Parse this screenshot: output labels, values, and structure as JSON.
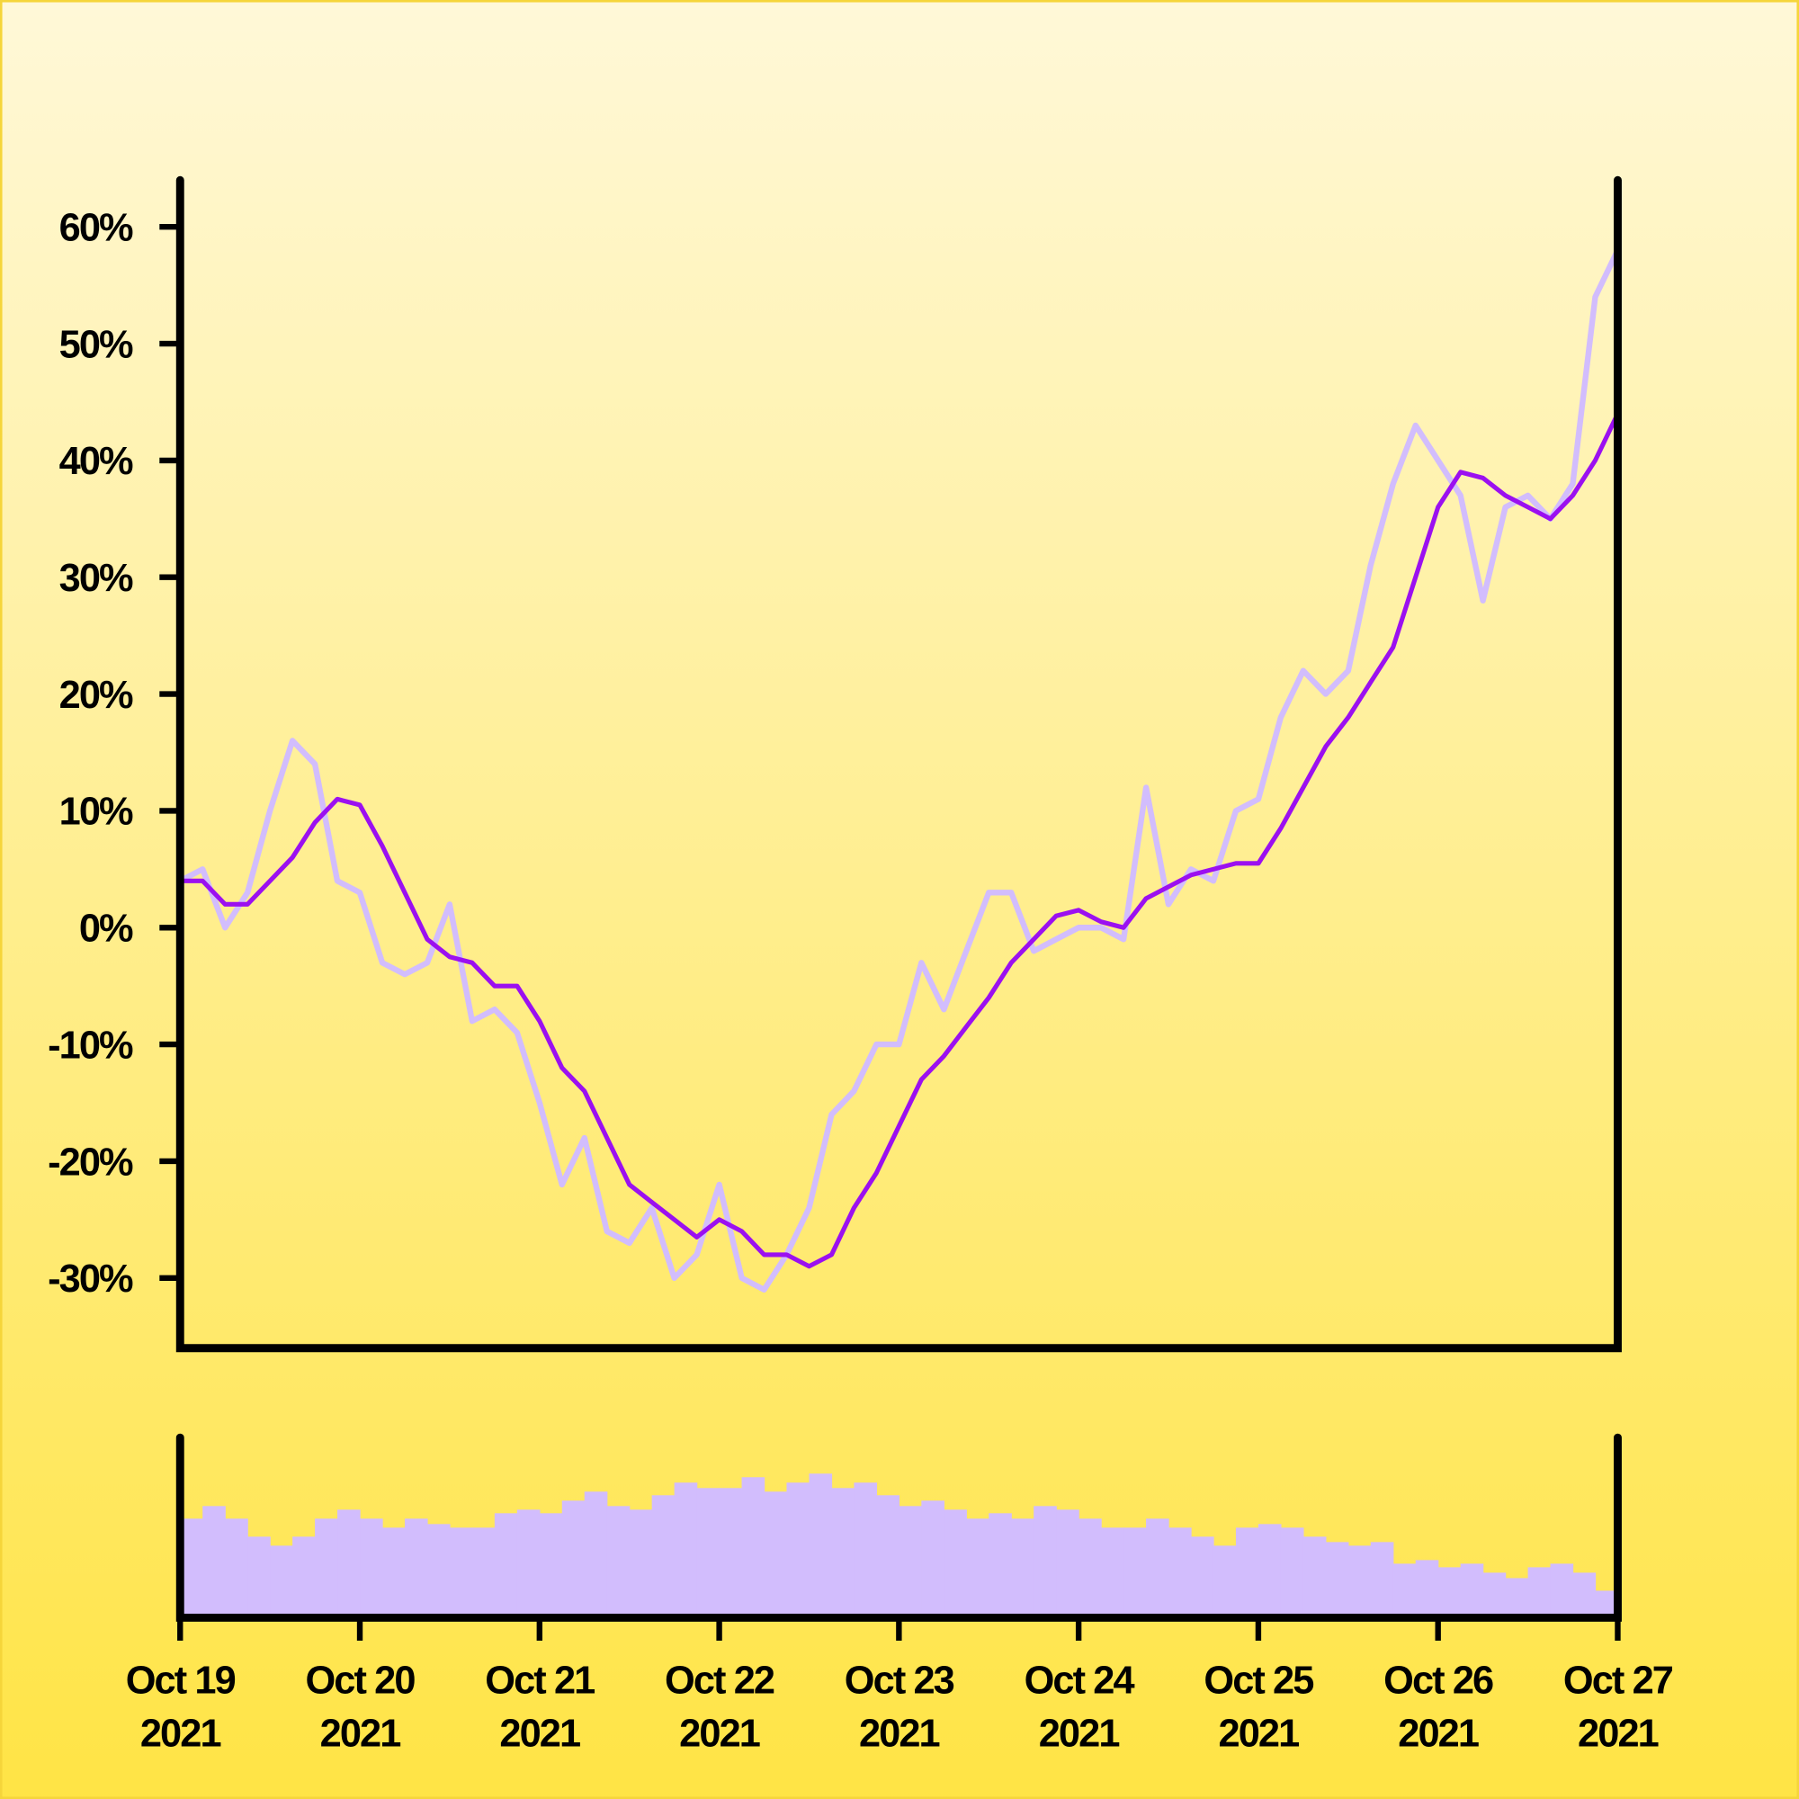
{
  "chart_data": [
    {
      "type": "line",
      "xlim": [
        0,
        8
      ],
      "ylim": [
        -36,
        64
      ],
      "yticks": [
        {
          "value": -30,
          "label": "-30%"
        },
        {
          "value": -20,
          "label": "-20%"
        },
        {
          "value": -10,
          "label": "-10%"
        },
        {
          "value": 0,
          "label": "0%"
        },
        {
          "value": 10,
          "label": "10%"
        },
        {
          "value": 20,
          "label": "20%"
        },
        {
          "value": 30,
          "label": "30%"
        },
        {
          "value": 40,
          "label": "40%"
        },
        {
          "value": 50,
          "label": "50%"
        },
        {
          "value": 60,
          "label": "60%"
        }
      ],
      "x": [
        0,
        0.125,
        0.25,
        0.375,
        0.5,
        0.625,
        0.75,
        0.875,
        1,
        1.125,
        1.25,
        1.375,
        1.5,
        1.625,
        1.75,
        1.875,
        2,
        2.125,
        2.25,
        2.375,
        2.5,
        2.625,
        2.75,
        2.875,
        3,
        3.125,
        3.25,
        3.375,
        3.5,
        3.625,
        3.75,
        3.875,
        4,
        4.125,
        4.25,
        4.375,
        4.5,
        4.625,
        4.75,
        4.875,
        5,
        5.125,
        5.25,
        5.375,
        5.5,
        5.625,
        5.75,
        5.875,
        6,
        6.125,
        6.25,
        6.375,
        6.5,
        6.625,
        6.75,
        6.875,
        7,
        7.125,
        7.25,
        7.375,
        7.5,
        7.625,
        7.75,
        7.875,
        8
      ],
      "series": [
        {
          "color": "#d2bdfd",
          "values": [
            4,
            5,
            0,
            3,
            10,
            16,
            14,
            4,
            3,
            -3,
            -4,
            -3,
            2,
            -8,
            -7,
            -9,
            -15,
            -22,
            -18,
            -26,
            -27,
            -24,
            -30,
            -28,
            -22,
            -30,
            -31,
            -28,
            -24,
            -16,
            -14,
            -10,
            -10,
            -3,
            -7,
            -2,
            3,
            3,
            -2,
            -1,
            0,
            0,
            -1,
            12,
            2,
            5,
            4,
            10,
            11,
            18,
            22,
            20,
            22,
            31,
            38,
            43,
            40,
            37,
            28,
            36,
            37,
            35,
            38,
            54,
            58
          ]
        },
        {
          "color": "#9b10f0",
          "values": [
            4,
            4,
            2,
            2,
            4,
            6,
            9,
            11,
            10.5,
            7,
            3,
            -1,
            -2.5,
            -3,
            -5,
            -5,
            -8,
            -12,
            -14,
            -18,
            -22,
            -23.5,
            -25,
            -26.5,
            -25,
            -26,
            -28,
            -28,
            -29,
            -28,
            -24,
            -21,
            -17,
            -13,
            -11,
            -8.5,
            -6,
            -3,
            -1,
            1,
            1.5,
            0.5,
            0,
            2.5,
            3.5,
            4.5,
            5,
            5.5,
            5.5,
            8.5,
            12,
            15.5,
            18,
            21,
            24,
            30,
            36,
            39,
            38.5,
            37,
            36,
            35,
            37,
            40,
            44
          ]
        }
      ]
    },
    {
      "type": "bar",
      "xlim": [
        0,
        8
      ],
      "ylim": [
        0,
        100
      ],
      "color": "#d2bdfd",
      "xticks": [
        {
          "value": 0,
          "label": [
            "Oct 19",
            "2021"
          ]
        },
        {
          "value": 1,
          "label": [
            "Oct 20",
            "2021"
          ]
        },
        {
          "value": 2,
          "label": [
            "Oct 21",
            "2021"
          ]
        },
        {
          "value": 3,
          "label": [
            "Oct 22",
            "2021"
          ]
        },
        {
          "value": 4,
          "label": [
            "Oct 23",
            "2021"
          ]
        },
        {
          "value": 5,
          "label": [
            "Oct 24",
            "2021"
          ]
        },
        {
          "value": 6,
          "label": [
            "Oct 25",
            "2021"
          ]
        },
        {
          "value": 7,
          "label": [
            "Oct 26",
            "2021"
          ]
        },
        {
          "value": 8,
          "label": [
            "Oct 27",
            "2021"
          ]
        }
      ],
      "x": [
        0,
        0.125,
        0.25,
        0.375,
        0.5,
        0.625,
        0.75,
        0.875,
        1,
        1.125,
        1.25,
        1.375,
        1.5,
        1.625,
        1.75,
        1.875,
        2,
        2.125,
        2.25,
        2.375,
        2.5,
        2.625,
        2.75,
        2.875,
        3,
        3.125,
        3.25,
        3.375,
        3.5,
        3.625,
        3.75,
        3.875,
        4,
        4.125,
        4.25,
        4.375,
        4.5,
        4.625,
        4.75,
        4.875,
        5,
        5.125,
        5.25,
        5.375,
        5.5,
        5.625,
        5.75,
        5.875,
        6,
        6.125,
        6.25,
        6.375,
        6.5,
        6.625,
        6.75,
        6.875,
        7,
        7.125,
        7.25,
        7.375,
        7.5,
        7.625,
        7.75,
        7.875
      ],
      "values": [
        55,
        62,
        55,
        45,
        40,
        45,
        55,
        60,
        55,
        50,
        55,
        52,
        50,
        50,
        58,
        60,
        58,
        65,
        70,
        62,
        60,
        68,
        75,
        72,
        72,
        78,
        70,
        75,
        80,
        72,
        75,
        68,
        62,
        65,
        60,
        55,
        58,
        55,
        62,
        60,
        55,
        50,
        50,
        55,
        50,
        45,
        40,
        50,
        52,
        50,
        45,
        42,
        40,
        42,
        30,
        32,
        28,
        30,
        25,
        22,
        28,
        30,
        25,
        15
      ]
    }
  ]
}
